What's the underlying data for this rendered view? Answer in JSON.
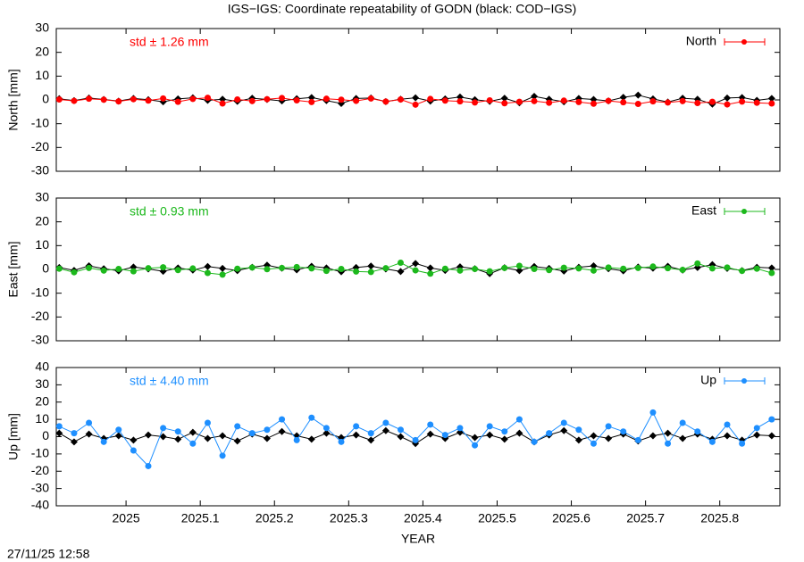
{
  "title": "IGS−IGS: Coordinate repeatability of GODN (black: COD−IGS)",
  "timestamp": "27/11/25 12:58",
  "chart_data": [
    {
      "type": "line",
      "ylabel": "North [mm]",
      "annotation": "std ± 1.26 mm",
      "legend": "top-right",
      "xlim": [
        2024.906,
        2025.881
      ],
      "xticks": [
        2025,
        2025.1,
        2025.2,
        2025.3,
        2025.4,
        2025.5,
        2025.6,
        2025.7,
        2025.8
      ],
      "ylim": [
        -30,
        30
      ],
      "yticks": [
        -30,
        -20,
        -10,
        0,
        10,
        20,
        30
      ],
      "x": [
        2024.91,
        2024.93,
        2024.95,
        2024.97,
        2024.99,
        2025.01,
        2025.03,
        2025.05,
        2025.07,
        2025.09,
        2025.11,
        2025.13,
        2025.15,
        2025.17,
        2025.19,
        2025.21,
        2025.23,
        2025.25,
        2025.27,
        2025.29,
        2025.31,
        2025.33,
        2025.35,
        2025.37,
        2025.39,
        2025.41,
        2025.43,
        2025.45,
        2025.47,
        2025.49,
        2025.51,
        2025.53,
        2025.55,
        2025.57,
        2025.59,
        2025.61,
        2025.63,
        2025.65,
        2025.67,
        2025.69,
        2025.71,
        2025.73,
        2025.75,
        2025.77,
        2025.79,
        2025.81,
        2025.83,
        2025.85,
        2025.87
      ],
      "series": [
        {
          "color": "#000000",
          "values": [
            0.5,
            -0.3,
            0.8,
            0.2,
            -0.5,
            0.6,
            0.1,
            -0.8,
            0.4,
            0.9,
            -0.2,
            0.3,
            -0.6,
            0.7,
            0.2,
            -0.4,
            0.5,
            1.0,
            -0.3,
            -1.5,
            0.6,
            0.8,
            -0.7,
            0.3,
            0.9,
            -0.5,
            0.4,
            1.2,
            0.1,
            -0.6,
            0.7,
            -1.2,
            1.5,
            0.3,
            -0.8,
            0.6,
            0.2,
            -0.4,
            1.1,
            2.0,
            0.4,
            -0.9,
            0.7,
            0.3,
            -1.8,
            0.8,
            1.0,
            -0.2,
            0.6
          ]
        },
        {
          "name": "North",
          "color": "#ff0000",
          "values": [
            0.2,
            -0.4,
            0.5,
            0.1,
            -0.6,
            0.3,
            -0.3,
            0.6,
            -0.8,
            0.4,
            0.9,
            -1.5,
            0.2,
            -0.5,
            0.3,
            0.8,
            -0.2,
            -0.9,
            0.5,
            0.1,
            -0.4,
            0.6,
            -0.7,
            0.2,
            -2.0,
            0.4,
            -0.3,
            -0.6,
            -1.1,
            -0.2,
            -1.4,
            -0.8,
            -0.5,
            -1.2,
            -0.3,
            -0.9,
            -1.6,
            -0.4,
            -1.0,
            -1.7,
            -0.6,
            -1.1,
            -0.5,
            -1.3,
            -0.8,
            -1.9,
            -0.7,
            -1.2,
            -1.5
          ]
        }
      ]
    },
    {
      "type": "line",
      "ylabel": "East [mm]",
      "annotation": "std ± 0.93 mm",
      "legend": "top-right",
      "xlim": [
        2024.906,
        2025.881
      ],
      "xticks": [
        2025,
        2025.1,
        2025.2,
        2025.3,
        2025.4,
        2025.5,
        2025.6,
        2025.7,
        2025.8
      ],
      "ylim": [
        -30,
        30
      ],
      "yticks": [
        -30,
        -20,
        -10,
        0,
        10,
        20,
        30
      ],
      "x": [
        2024.91,
        2024.93,
        2024.95,
        2024.97,
        2024.99,
        2025.01,
        2025.03,
        2025.05,
        2025.07,
        2025.09,
        2025.11,
        2025.13,
        2025.15,
        2025.17,
        2025.19,
        2025.21,
        2025.23,
        2025.25,
        2025.27,
        2025.29,
        2025.31,
        2025.33,
        2025.35,
        2025.37,
        2025.39,
        2025.41,
        2025.43,
        2025.45,
        2025.47,
        2025.49,
        2025.51,
        2025.53,
        2025.55,
        2025.57,
        2025.59,
        2025.61,
        2025.63,
        2025.65,
        2025.67,
        2025.69,
        2025.71,
        2025.73,
        2025.75,
        2025.77,
        2025.79,
        2025.81,
        2025.83,
        2025.85,
        2025.87
      ],
      "series": [
        {
          "color": "#000000",
          "values": [
            0.8,
            -0.4,
            1.5,
            0.3,
            -0.6,
            1.0,
            0.2,
            -0.8,
            0.6,
            -0.3,
            1.2,
            0.4,
            -0.5,
            0.9,
            1.8,
            0.5,
            -0.2,
            1.3,
            0.6,
            -1.0,
            0.8,
            1.4,
            0.2,
            -0.9,
            2.5,
            0.6,
            -0.4,
            1.1,
            0.3,
            -1.8,
            0.7,
            -0.5,
            1.2,
            0.4,
            -0.7,
            0.9,
            1.5,
            0.3,
            -0.6,
            1.0,
            0.5,
            1.3,
            -0.3,
            0.8,
            2.0,
            0.4,
            -0.5,
            0.9,
            0.6
          ]
        },
        {
          "name": "East",
          "color": "#1cb81c",
          "values": [
            0.3,
            -1.2,
            0.6,
            -0.5,
            0.2,
            -0.8,
            0.5,
            0.9,
            -0.3,
            0.4,
            -1.5,
            -2.2,
            0.3,
            0.8,
            0.1,
            0.6,
            1.0,
            0.4,
            -0.6,
            0.2,
            -0.9,
            -1.1,
            0.5,
            2.8,
            -0.4,
            -1.8,
            0.3,
            -0.5,
            0.2,
            -0.8,
            0.6,
            1.5,
            0.2,
            -0.3,
            0.7,
            0.4,
            -0.5,
            0.8,
            0.3,
            0.6,
            1.2,
            0.5,
            -0.2,
            2.5,
            0.4,
            0.8,
            -0.6,
            0.3,
            -1.5
          ]
        }
      ]
    },
    {
      "type": "line",
      "ylabel": "Up [mm]",
      "xlabel": "YEAR",
      "annotation": "std ± 4.40 mm",
      "legend": "top-right",
      "xlim": [
        2024.906,
        2025.881
      ],
      "xticks": [
        2025,
        2025.1,
        2025.2,
        2025.3,
        2025.4,
        2025.5,
        2025.6,
        2025.7,
        2025.8
      ],
      "ylim": [
        -40,
        40
      ],
      "yticks": [
        -40,
        -30,
        -20,
        -10,
        0,
        10,
        20,
        30,
        40
      ],
      "x": [
        2024.91,
        2024.93,
        2024.95,
        2024.97,
        2024.99,
        2025.01,
        2025.03,
        2025.05,
        2025.07,
        2025.09,
        2025.11,
        2025.13,
        2025.15,
        2025.17,
        2025.19,
        2025.21,
        2025.23,
        2025.25,
        2025.27,
        2025.29,
        2025.31,
        2025.33,
        2025.35,
        2025.37,
        2025.39,
        2025.41,
        2025.43,
        2025.45,
        2025.47,
        2025.49,
        2025.51,
        2025.53,
        2025.55,
        2025.57,
        2025.59,
        2025.61,
        2025.63,
        2025.65,
        2025.67,
        2025.69,
        2025.71,
        2025.73,
        2025.75,
        2025.77,
        2025.79,
        2025.81,
        2025.83,
        2025.85,
        2025.87
      ],
      "series": [
        {
          "color": "#000000",
          "values": [
            2.0,
            -3.0,
            1.5,
            -1.0,
            0.5,
            -2.0,
            1.0,
            0.0,
            -1.5,
            2.5,
            -1.0,
            0.5,
            -2.5,
            1.5,
            -1.0,
            3.0,
            0.5,
            -1.5,
            2.0,
            -0.5,
            1.0,
            -2.0,
            3.5,
            0.0,
            -4.0,
            1.5,
            -1.0,
            2.5,
            -0.5,
            1.0,
            -1.5,
            2.0,
            -3.0,
            1.0,
            3.5,
            -2.0,
            0.5,
            -1.0,
            1.5,
            -2.5,
            0.5,
            2.0,
            -1.0,
            1.5,
            -1.5,
            0.5,
            -2.0,
            1.0,
            0.5
          ]
        },
        {
          "name": "Up",
          "color": "#1e8fff",
          "values": [
            6,
            2,
            8,
            -3,
            4,
            -8,
            -17,
            5,
            3,
            -4,
            8,
            -11,
            6,
            2,
            4,
            10,
            -2,
            11,
            5,
            -3,
            6,
            2,
            8,
            4,
            -2,
            7,
            1,
            5,
            -5,
            6,
            3,
            10,
            -3,
            2,
            8,
            4,
            -4,
            6,
            3,
            -2,
            14,
            -4,
            8,
            3,
            -3,
            7,
            -4,
            5,
            10
          ]
        }
      ]
    }
  ]
}
